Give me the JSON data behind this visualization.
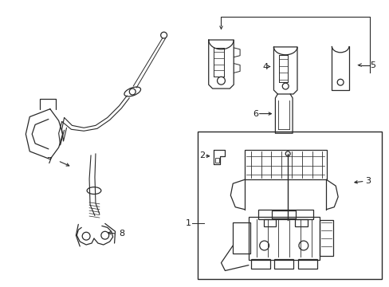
{
  "background_color": "#ffffff",
  "line_color": "#2a2a2a",
  "text_color": "#1a1a1a",
  "fig_width": 4.89,
  "fig_height": 3.6,
  "dpi": 100
}
